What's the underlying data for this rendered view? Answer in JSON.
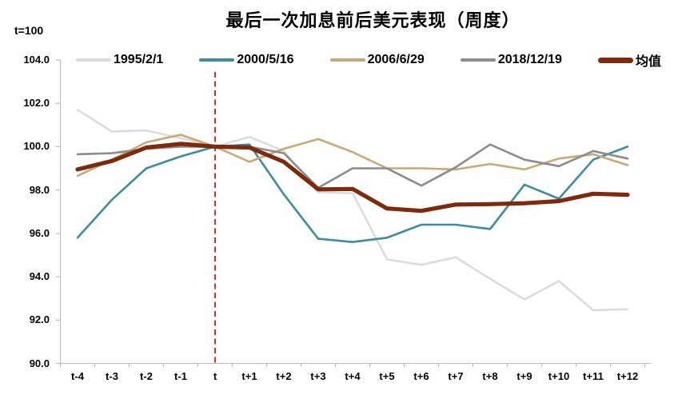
{
  "chart_data": {
    "type": "line",
    "title": "最后一次加息前后美元表现（周度）",
    "note": "t=100",
    "xlabel": "",
    "ylabel": "",
    "categories": [
      "t-4",
      "t-3",
      "t-2",
      "t-1",
      "t",
      "t+1",
      "t+2",
      "t+3",
      "t+4",
      "t+5",
      "t+6",
      "t+7",
      "t+8",
      "t+9",
      "t+10",
      "t+11",
      "t+12"
    ],
    "y_ticks": [
      "104.0",
      "102.0",
      "100.0",
      "98.0",
      "96.0",
      "94.0",
      "92.0",
      "90.0"
    ],
    "ylim": [
      90,
      104
    ],
    "grid": false,
    "legend_position": "top",
    "event_line": {
      "at_category": "t",
      "style": "dashed",
      "color": "#C00000"
    },
    "axis_color": "#BFBFBF",
    "series": [
      {
        "name": "1995/2/1",
        "color": "#DCDCDC",
        "width": 2.6,
        "emphasis": false,
        "values": [
          101.7,
          100.7,
          100.75,
          100.4,
          100.0,
          100.45,
          99.8,
          97.9,
          97.85,
          94.8,
          94.55,
          94.9,
          93.9,
          92.95,
          93.8,
          92.45,
          92.5
        ]
      },
      {
        "name": "2000/5/16",
        "color": "#3E8CA0",
        "width": 2.6,
        "emphasis": false,
        "values": [
          95.8,
          97.55,
          99.0,
          99.55,
          100.0,
          100.1,
          97.8,
          95.75,
          95.6,
          95.8,
          96.4,
          96.4,
          96.2,
          98.25,
          97.6,
          99.4,
          100.0
        ]
      },
      {
        "name": "2006/6/29",
        "color": "#C9A877",
        "width": 2.6,
        "emphasis": false,
        "values": [
          98.65,
          99.4,
          100.2,
          100.55,
          100.0,
          99.3,
          99.9,
          100.35,
          99.75,
          99.0,
          99.0,
          98.95,
          99.2,
          98.95,
          99.45,
          99.65,
          99.15
        ]
      },
      {
        "name": "2018/12/19",
        "color": "#8C8C8C",
        "width": 2.6,
        "emphasis": false,
        "values": [
          99.65,
          99.7,
          99.9,
          100.0,
          100.0,
          100.0,
          99.7,
          98.1,
          99.0,
          99.0,
          98.2,
          99.05,
          100.1,
          99.4,
          99.1,
          99.8,
          99.45
        ]
      },
      {
        "name": "均值",
        "color": "#7F2A0C",
        "width": 5.2,
        "emphasis": true,
        "values": [
          98.95,
          99.34,
          99.96,
          100.13,
          100.0,
          99.96,
          99.3,
          98.03,
          98.05,
          97.15,
          97.04,
          97.33,
          97.35,
          97.39,
          97.49,
          97.83,
          97.78
        ]
      }
    ]
  }
}
